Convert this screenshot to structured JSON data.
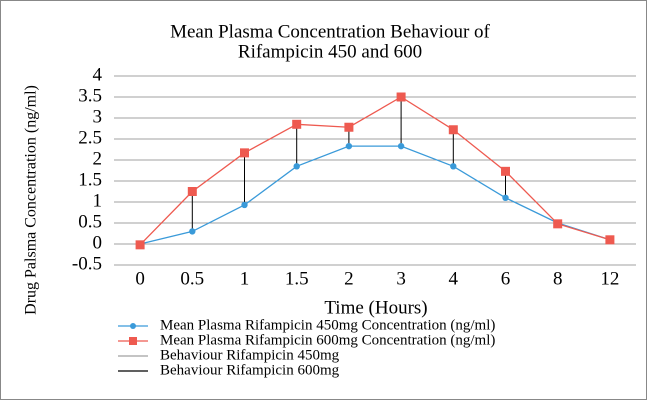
{
  "chart_data": {
    "type": "line",
    "title": [
      "Mean Plasma Concentration Behaviour of",
      "Rifampicin 450 and 600"
    ],
    "x_label": "Time (Hours)",
    "y_label": "Drug Palsma Concentration (ng/ml)",
    "categories": [
      "0",
      "0.5",
      "1",
      "1.5",
      "2",
      "3",
      "4",
      "6",
      "8",
      "12"
    ],
    "series": [
      {
        "name": "Mean Plasma Rifampicin 450mg Concentration (ng/ml)",
        "color": "#3a9ad9",
        "marker": "circle",
        "values": [
          0,
          0.3,
          0.93,
          1.85,
          2.33,
          2.33,
          1.85,
          1.1,
          0.5,
          0.1
        ]
      },
      {
        "name": "Mean Plasma Rifampicin 600mg Concentration (ng/ml)",
        "color": "#ee5a50",
        "marker": "square",
        "values": [
          -0.02,
          1.25,
          2.17,
          2.85,
          2.78,
          3.5,
          2.72,
          1.73,
          0.48,
          0.1
        ]
      }
    ],
    "hilo_lines": [
      {
        "name": "Behaviour Rifampicin 450mg",
        "color": "#a0a0a0"
      },
      {
        "name": "Behaviour Rifampicin 600mg",
        "color": "#000000"
      }
    ],
    "ylim": [
      -0.5,
      4
    ],
    "yticks": [
      -0.5,
      0,
      0.5,
      1,
      1.5,
      2,
      2.5,
      3,
      3.5,
      4
    ],
    "grid": true
  }
}
